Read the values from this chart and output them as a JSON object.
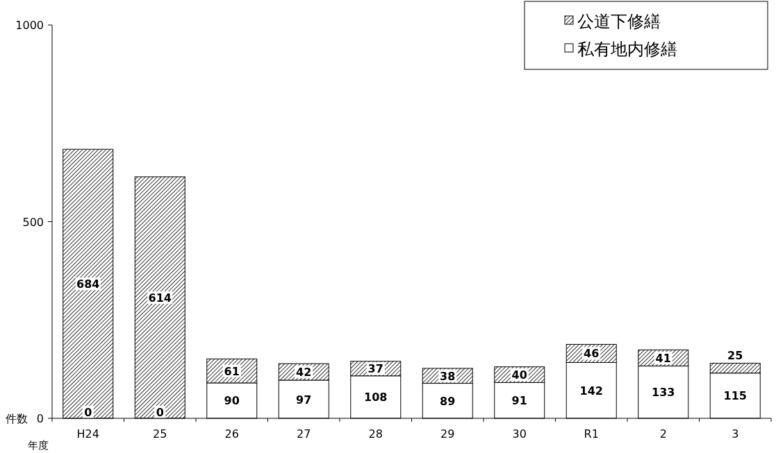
{
  "chart_data": {
    "type": "bar",
    "stacked": true,
    "xlabel": "年度",
    "ylabel": "件数",
    "categories": [
      "H24",
      "25",
      "26",
      "27",
      "28",
      "29",
      "30",
      "R1",
      "2",
      "3"
    ],
    "series": [
      {
        "name": "私有地内修繕",
        "color": "#ffffff",
        "values": [
          0,
          0,
          90,
          97,
          108,
          89,
          91,
          142,
          133,
          115
        ],
        "value_labels": [
          null,
          null,
          "90",
          "97",
          "108",
          "89",
          "91",
          "142",
          "133",
          "115"
        ]
      },
      {
        "name": "公道下修繕",
        "color": "#000000",
        "values": [
          684,
          614,
          61,
          42,
          37,
          38,
          40,
          46,
          41,
          25
        ],
        "value_labels": [
          "684",
          "614",
          "61",
          "42",
          "37",
          "38",
          "40",
          "46",
          "41",
          "25"
        ]
      }
    ],
    "ylim": [
      0,
      1000
    ],
    "yticks": [
      0,
      500,
      1000
    ],
    "annotations": [
      {
        "text": "0",
        "x": "H24",
        "y": 0
      },
      {
        "text": "0",
        "x": "25",
        "y": 0
      }
    ],
    "legend": "top right",
    "grid": false
  }
}
